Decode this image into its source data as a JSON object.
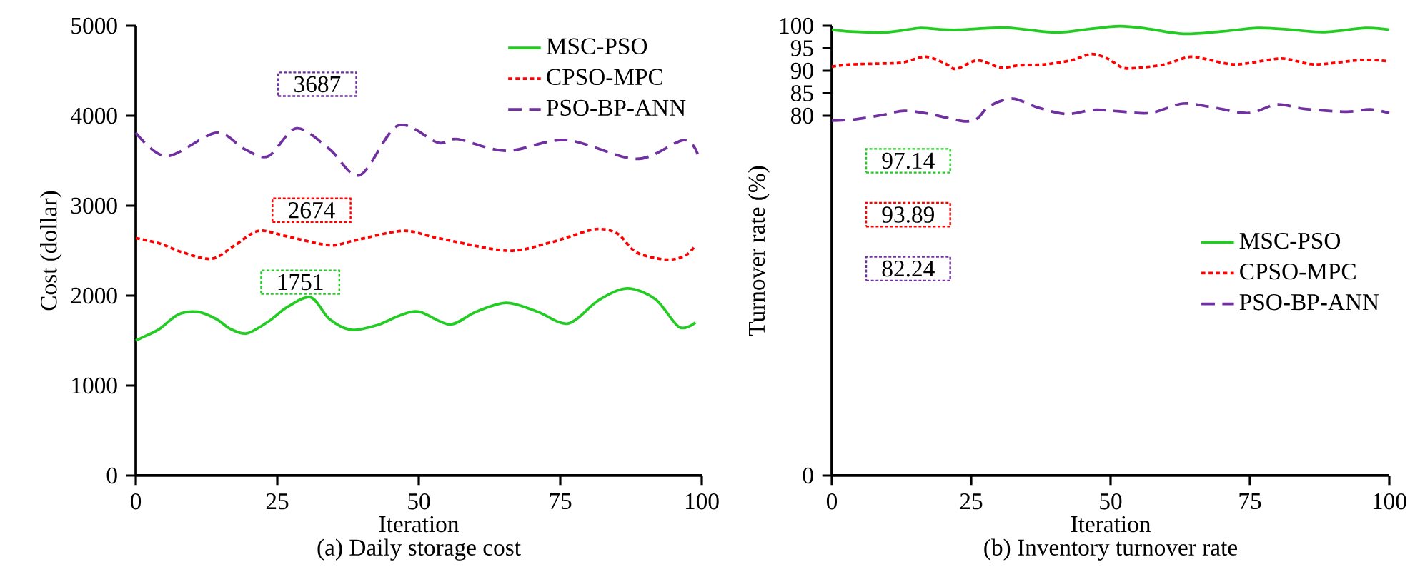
{
  "chart_data": [
    {
      "type": "line",
      "title": "(a) Daily storage cost",
      "xlabel": "Iteration",
      "ylabel": "Cost (dollar)",
      "xlim": [
        0,
        100
      ],
      "xticks": [
        0,
        25,
        50,
        75,
        100
      ],
      "ylim": [
        0,
        5000
      ],
      "yticks": [
        0,
        1000,
        2000,
        3000,
        4000,
        5000
      ],
      "legend": "top right",
      "series": [
        {
          "name": "MSC-PSO",
          "color": "#22cc22",
          "line_style": "solid",
          "x": [
            0,
            1.7,
            4.2,
            7.5,
            10.9,
            14.2,
            16.7,
            19.6,
            23.4,
            26.7,
            30.9,
            34.2,
            38,
            42.6,
            46.7,
            50.1,
            55.5,
            60.1,
            65.5,
            71,
            76.4,
            81.8,
            86.8,
            91.8,
            96,
            98.9
          ],
          "values": [
            1500,
            1550,
            1630,
            1790,
            1820,
            1740,
            1630,
            1580,
            1710,
            1870,
            1980,
            1740,
            1620,
            1670,
            1780,
            1820,
            1680,
            1820,
            1920,
            1820,
            1690,
            1950,
            2080,
            1960,
            1650,
            1700
          ]
        },
        {
          "name": "CPSO-MPC",
          "color": "#ff0000",
          "line_style": "dotted",
          "x": [
            0,
            4.2,
            8.3,
            13.4,
            17.5,
            21.7,
            26.7,
            34.2,
            38.4,
            47.2,
            53.4,
            65.5,
            72.6,
            76.8,
            81.4,
            85.1,
            88.5,
            93.9,
            97.2,
            98.9
          ],
          "values": [
            2640,
            2580,
            2480,
            2410,
            2560,
            2720,
            2660,
            2560,
            2610,
            2720,
            2640,
            2500,
            2580,
            2660,
            2740,
            2690,
            2480,
            2400,
            2450,
            2560
          ]
        },
        {
          "name": "PSO-BP-ANN",
          "color": "#7030a0",
          "line_style": "dashed",
          "x": [
            0,
            5.4,
            14.2,
            19.2,
            23.4,
            28.4,
            34.2,
            39.6,
            46.3,
            53.4,
            56.8,
            65.5,
            76,
            88.5,
            96.8,
            99.3
          ],
          "values": [
            3810,
            3550,
            3810,
            3630,
            3550,
            3860,
            3630,
            3340,
            3890,
            3700,
            3740,
            3610,
            3730,
            3520,
            3730,
            3570
          ]
        }
      ],
      "annotations": [
        "1751",
        "2674",
        "3687"
      ]
    },
    {
      "type": "line",
      "title": "(b) Inventory turnover rate",
      "xlabel": "Iteration",
      "ylabel": "Turnover rate (%)",
      "xlim": [
        0,
        100
      ],
      "xticks": [
        0,
        25,
        50,
        75,
        100
      ],
      "ylim": [
        0,
        100
      ],
      "yticks": [
        0,
        80,
        85,
        90,
        95,
        100
      ],
      "legend": "right",
      "series": [
        {
          "name": "MSC-PSO",
          "color": "#22cc22",
          "line_style": "solid",
          "x": [
            0,
            3.4,
            9.2,
            13.4,
            16,
            19.3,
            22.7,
            30.3,
            34.5,
            40.3,
            47.1,
            51.7,
            56.3,
            63,
            69.7,
            76.5,
            82.4,
            88.2,
            95.8,
            100
          ],
          "values": [
            99.1,
            98.7,
            98.5,
            99.1,
            99.5,
            99.2,
            99.1,
            99.6,
            99.2,
            98.5,
            99.4,
            99.9,
            99.4,
            98.2,
            98.7,
            99.5,
            99.1,
            98.6,
            99.5,
            99.1
          ]
        },
        {
          "name": "CPSO-MPC",
          "color": "#ff0000",
          "line_style": "dotted",
          "x": [
            0,
            3.4,
            9.2,
            12.6,
            16.8,
            20.2,
            22.3,
            26.1,
            30.3,
            33.6,
            38.2,
            42.9,
            46.6,
            49.6,
            52.1,
            54.6,
            59.7,
            64.3,
            68.1,
            72.7,
            80.7,
            86.6,
            95,
            100
          ],
          "values": [
            90.9,
            91.4,
            91.6,
            91.8,
            93.1,
            91.7,
            90.4,
            92.3,
            90.7,
            91.2,
            91.4,
            92.3,
            93.7,
            92.6,
            90.7,
            90.6,
            91.4,
            93.1,
            92.3,
            91.4,
            92.7,
            91.4,
            92.4,
            92.1
          ]
        },
        {
          "name": "PSO-BP-ANN",
          "color": "#7030a0",
          "line_style": "dashed",
          "x": [
            0,
            4.2,
            9.2,
            13,
            17.6,
            23.5,
            26.1,
            28.2,
            32.4,
            37,
            42,
            47,
            51.3,
            57.1,
            63,
            68.1,
            74.8,
            79.8,
            84.9,
            92.4,
            96.6,
            100
          ],
          "values": [
            78.9,
            79.2,
            80.2,
            81.1,
            80.4,
            78.8,
            79.4,
            82.1,
            83.8,
            81.8,
            80.4,
            81.3,
            81,
            80.6,
            82.7,
            81.9,
            80.6,
            82.5,
            81.5,
            80.9,
            81.4,
            80.6
          ]
        }
      ],
      "annotations": [
        "97.14",
        "93.89",
        "82.24"
      ]
    }
  ]
}
